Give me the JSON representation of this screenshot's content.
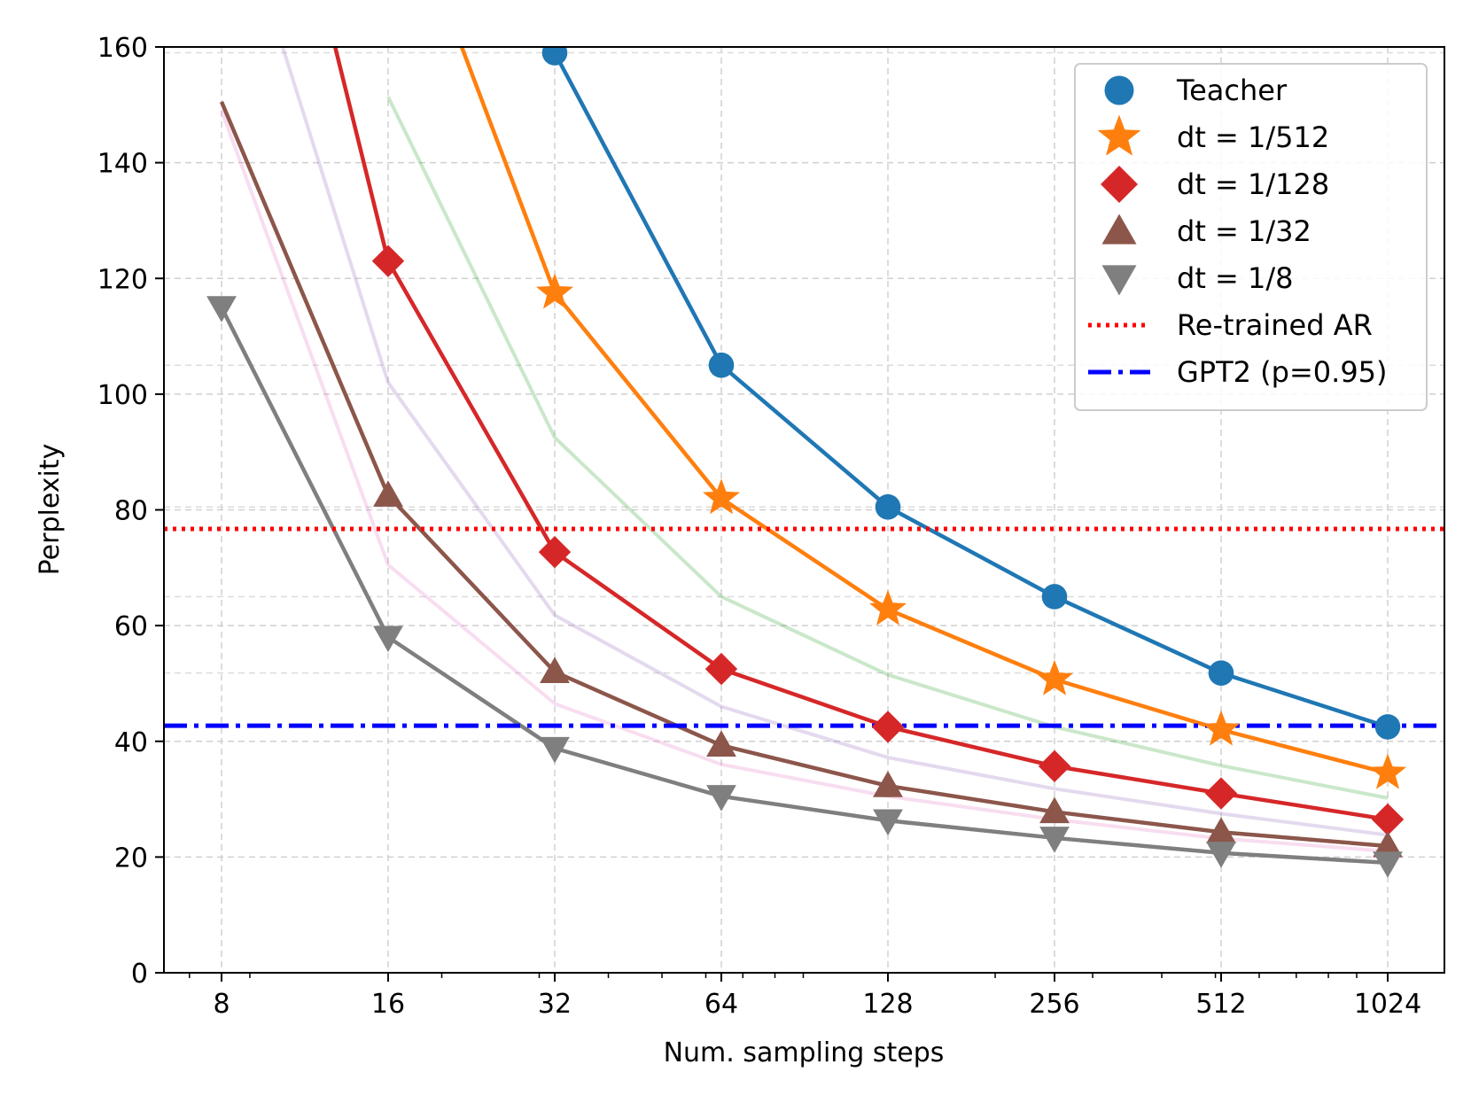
{
  "chart_data": {
    "type": "line",
    "title": "",
    "xlabel": "Num. sampling steps",
    "ylabel": "Perplexity",
    "xscale": "log2",
    "x": [
      8,
      16,
      32,
      64,
      128,
      256,
      512,
      1024
    ],
    "xticks": [
      "8",
      "16",
      "32",
      "64",
      "128",
      "256",
      "512",
      "1024"
    ],
    "ylim": [
      0,
      160
    ],
    "yticks": [
      "0",
      "20",
      "40",
      "60",
      "80",
      "100",
      "120",
      "140",
      "160"
    ],
    "grid": true,
    "legend_position": "top-right",
    "series": [
      {
        "name": "Teacher",
        "color": "#1f77b4",
        "marker": "circle",
        "values": [
          null,
          null,
          159,
          105,
          80.5,
          65,
          51.8,
          42.5
        ]
      },
      {
        "name": "dt = 1/512",
        "color": "#ff7f0e",
        "marker": "star",
        "values": [
          null,
          null,
          117.5,
          82,
          62.8,
          50.7,
          42,
          34.5
        ]
      },
      {
        "name": "dt = 1/128",
        "color": "#d62728",
        "marker": "diamond",
        "values": [
          null,
          123,
          72.7,
          52.5,
          42.5,
          35.7,
          31,
          26.5
        ]
      },
      {
        "name": "dt = 1/32",
        "color": "#8c564b",
        "marker": "triangle-up",
        "values": [
          null,
          82.5,
          52,
          39.3,
          32.3,
          27.8,
          24.3,
          21.9
        ]
      },
      {
        "name": "dt = 1/8",
        "color": "#7f7f7f",
        "marker": "triangle-down",
        "values": [
          115,
          58,
          38.8,
          30.5,
          26.3,
          23.3,
          20.7,
          19
        ]
      }
    ],
    "faint_series": [
      {
        "color": "#2ca02c",
        "values": [
          null,
          null,
          92.5,
          65,
          51.5,
          42.5,
          35.8,
          30.2
        ]
      },
      {
        "color": "#9467bd",
        "values": [
          null,
          102,
          61.8,
          46,
          37.2,
          31.8,
          27.5,
          23.8
        ]
      },
      {
        "color": "#e377c2",
        "values": [
          149,
          70.5,
          46.5,
          36,
          30.5,
          26.5,
          23.2,
          21
        ]
      }
    ],
    "reference_lines": [
      {
        "name": "Re-trained AR",
        "value": 76.7,
        "color": "#ff0000",
        "style": "dotted"
      },
      {
        "name": "GPT2 (p=0.95)",
        "value": 42.7,
        "color": "#0000ff",
        "style": "dashdot"
      }
    ]
  }
}
